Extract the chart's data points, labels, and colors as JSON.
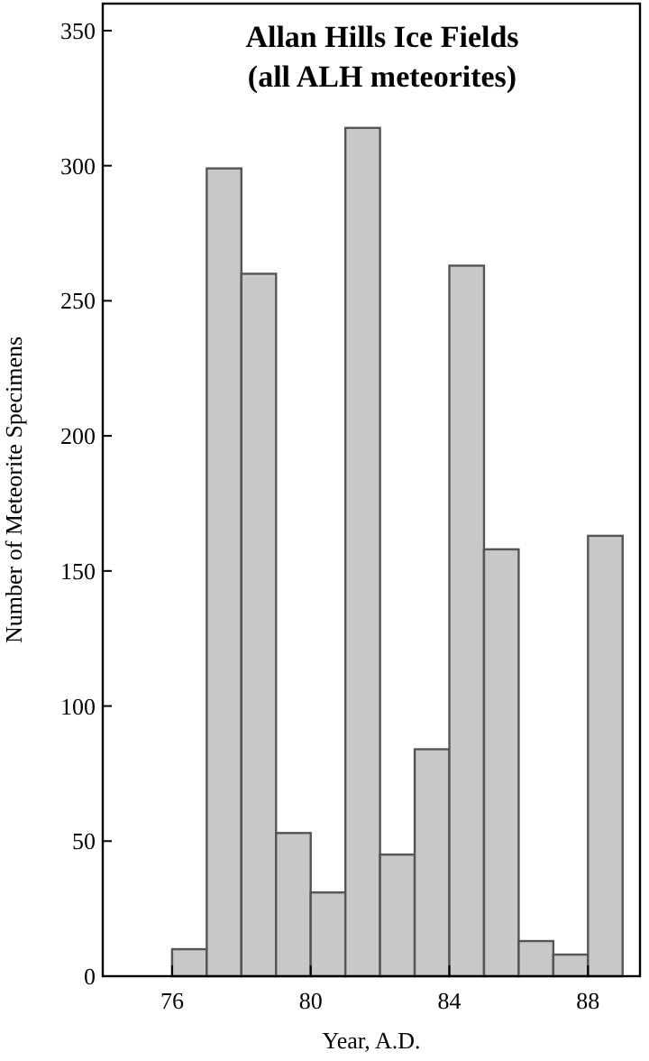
{
  "chart_data": {
    "type": "histogram",
    "title": "Allan Hills Ice Fields\n(all ALH meteorites)",
    "xlabel": "Year, A.D.",
    "ylabel": "Number of Meteorite Specimens",
    "bins": [
      76,
      77,
      78,
      79,
      80,
      81,
      82,
      83,
      84,
      85,
      86,
      87,
      88,
      89
    ],
    "values": [
      10,
      299,
      260,
      53,
      31,
      314,
      45,
      84,
      263,
      158,
      13,
      8,
      163
    ],
    "color": "#c8c8c8",
    "xlim": [
      74,
      89.5
    ],
    "xticks": [
      76,
      80,
      84,
      88
    ],
    "ylim": [
      0,
      360
    ],
    "yticks": [
      0,
      50,
      100,
      150,
      200,
      250,
      300,
      350
    ],
    "grid": false
  }
}
